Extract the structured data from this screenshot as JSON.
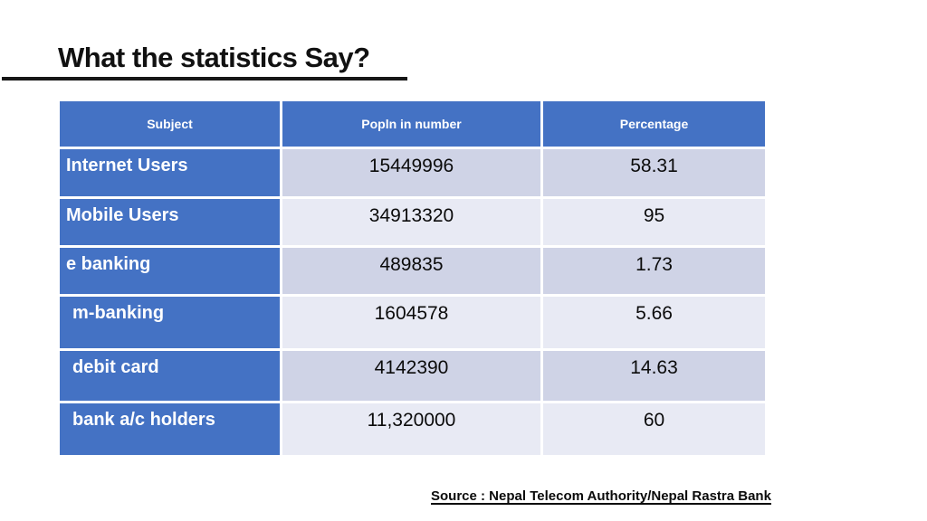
{
  "slide": {
    "title": "What the statistics Say?",
    "source": "Source : Nepal Telecom Authority/Nepal Rastra Bank"
  },
  "table": {
    "columns": [
      "Subject",
      "Popln in number",
      "Percentage"
    ],
    "rows": [
      {
        "subject": "Internet Users",
        "popln": "15449996",
        "percentage": "58.31"
      },
      {
        "subject": "Mobile Users",
        "popln": "34913320",
        "percentage": "95"
      },
      {
        "subject": "e banking",
        "popln": "489835",
        "percentage": "1.73"
      },
      {
        "subject": "m-banking",
        "popln": "1604578",
        "percentage": "5.66"
      },
      {
        "subject": "debit card",
        "popln": "4142390",
        "percentage": "14.63"
      },
      {
        "subject": "bank a/c holders",
        "popln": "11,320000",
        "percentage": "60"
      }
    ]
  },
  "colors": {
    "header_blue": "#4472C4",
    "band_dark": "#CFD3E6",
    "band_light": "#E8EAF4",
    "text_black": "#0b0b0b",
    "background": "#ffffff"
  },
  "chart_data": {
    "type": "table",
    "title": "What the statistics Say?",
    "columns": [
      "Subject",
      "Popln in number",
      "Percentage"
    ],
    "rows": [
      [
        "Internet Users",
        15449996,
        58.31
      ],
      [
        "Mobile Users",
        34913320,
        95
      ],
      [
        "e banking",
        489835,
        1.73
      ],
      [
        "m-banking",
        1604578,
        5.66
      ],
      [
        "debit card",
        4142390,
        14.63
      ],
      [
        "bank a/c holders",
        11320000,
        60
      ]
    ],
    "annotations": [
      "Source : Nepal Telecom Authority/Nepal Rastra Bank"
    ]
  }
}
